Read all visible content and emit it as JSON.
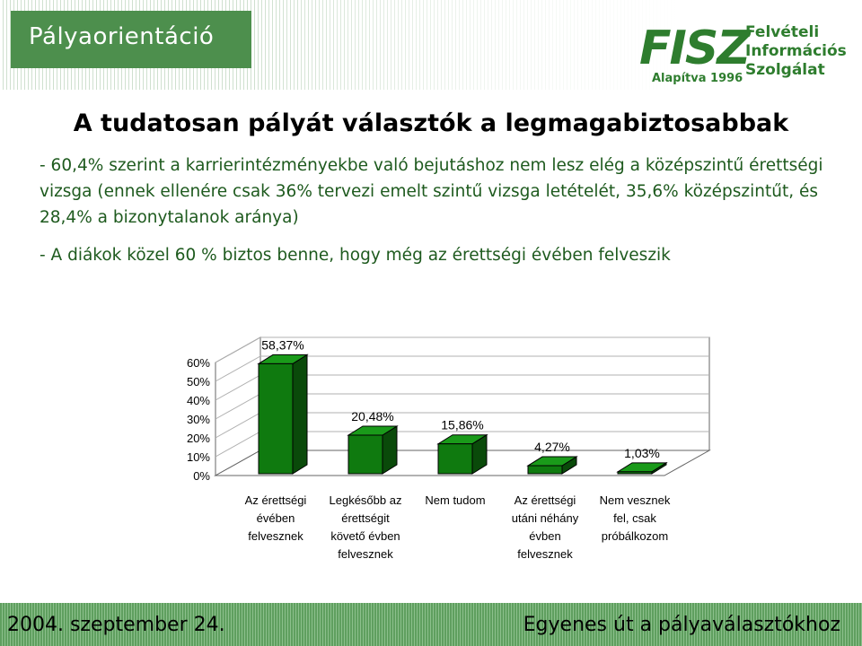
{
  "header": {
    "section_tag": "Pályaorientáció"
  },
  "logo": {
    "name": "FISZ",
    "line1": "Felvételi",
    "line2": "Információs",
    "line3": "Szolgálat",
    "founded": "Alapítva 1996"
  },
  "title": "A tudatosan pályát választók a legmagabiztosabbak",
  "bullets": [
    "- 60,4% szerint a karrierintézményekbe való bejutáshoz nem lesz elég a középszintű érettségi vizsga (ennek ellenére csak 36% tervezi emelt szintű vizsga letételét, 35,6% középszintűt, és 28,4% a bizonytalanok aránya)",
    "- A diákok közel 60 % biztos benne, hogy még az érettségi évében felveszik"
  ],
  "chart_data": {
    "type": "bar",
    "categories": [
      [
        "Az érettségi",
        "évében",
        "felvesznek"
      ],
      [
        "Legkésőbb az",
        "érettségit",
        "követő évben",
        "felvesznek"
      ],
      [
        "Nem tudom"
      ],
      [
        "Az érettségi",
        "utáni néhány",
        "évben",
        "felvesznek"
      ],
      [
        "Nem vesznek",
        "fel, csak",
        "próbálkozom"
      ]
    ],
    "values": [
      58.37,
      20.48,
      15.86,
      4.27,
      1.03
    ],
    "data_labels": [
      "58,37%",
      "20,48%",
      "15,86%",
      "4,27%",
      "1,03%"
    ],
    "y_ticks": [
      "0%",
      "10%",
      "20%",
      "30%",
      "40%",
      "50%",
      "60%"
    ],
    "ylim": [
      0,
      60
    ],
    "title": "",
    "xlabel": "",
    "ylabel": "",
    "grid": true,
    "colors": {
      "front": "#0f7a0f",
      "top": "#1a9a1a",
      "side": "#0a4a0a"
    }
  },
  "footer": {
    "date": "2004. szeptember 24.",
    "tagline": "Egyenes út a pályaválasztókhoz"
  }
}
